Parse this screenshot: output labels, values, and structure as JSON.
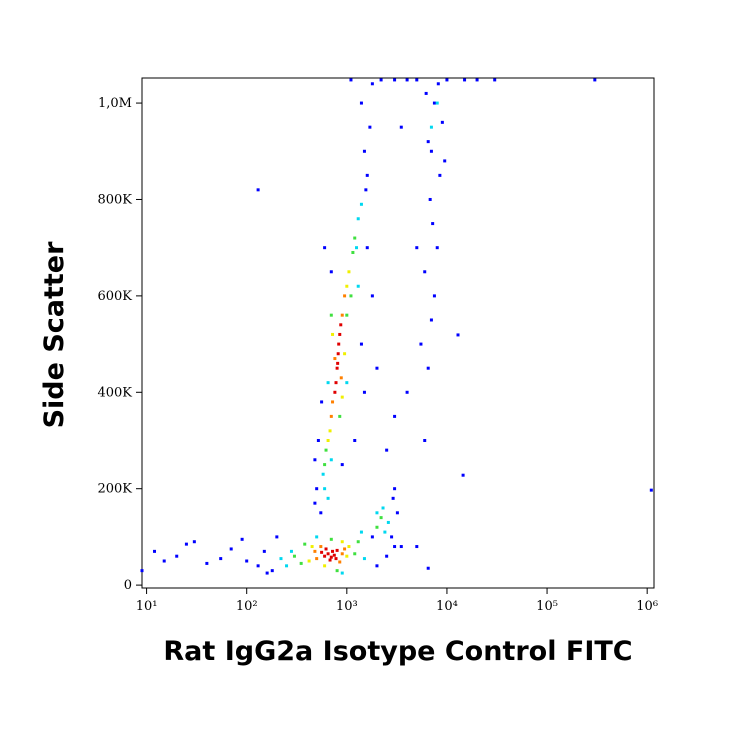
{
  "chart_data": {
    "type": "scatter",
    "x_label": "Rat IgG2a Isotype Control  FITC",
    "y_label": "Side Scatter",
    "xscale": "log",
    "xlim": [
      9,
      1170000
    ],
    "ylim": [
      -6000,
      1052000
    ],
    "xticks": [
      {
        "value": 10,
        "label": "10¹"
      },
      {
        "value": 100,
        "label": "10²"
      },
      {
        "value": 1000,
        "label": "10³"
      },
      {
        "value": 10000,
        "label": "10⁴"
      },
      {
        "value": 100000,
        "label": "10⁵"
      },
      {
        "value": 1000000,
        "label": "10⁶"
      }
    ],
    "yticks": [
      0,
      {
        "value": 200000,
        "label": "200K"
      },
      {
        "value": 400000,
        "label": "400K"
      },
      {
        "value": 600000,
        "label": "600K"
      },
      {
        "value": 800000,
        "label": "800K"
      },
      {
        "value": 1000000,
        "label": "1,0M"
      }
    ],
    "series": [
      {
        "color": "#0000ff",
        "x": [
          12,
          20,
          30,
          40,
          55,
          70,
          100,
          130,
          150,
          180,
          200,
          160,
          2500,
          3000,
          2000,
          1800,
          9,
          15,
          25,
          90,
          550,
          500,
          520,
          560,
          1600,
          1500,
          1700,
          1400,
          1800,
          1550,
          700,
          1400,
          1600,
          480,
          900,
          1200,
          1500,
          2000,
          3000,
          2500,
          1800,
          600,
          480,
          2800,
          3200,
          2900,
          3500,
          3000,
          6500,
          5000,
          6000,
          6500,
          7000,
          7500,
          6000,
          8000,
          7200,
          6800,
          8500,
          7000,
          6500,
          9000,
          7500,
          6200,
          8200,
          5500,
          9500,
          4000,
          5000,
          3500,
          2200,
          3000,
          5000,
          10000,
          15000,
          20000,
          30000,
          300000,
          1100,
          4000,
          130,
          14500,
          1100000,
          12900
        ],
        "values": [
          70000,
          60000,
          90000,
          45000,
          55000,
          75000,
          50000,
          40000,
          70000,
          30000,
          100000,
          25000,
          60000,
          80000,
          40000,
          100000,
          30000,
          50000,
          85000,
          95000,
          150000,
          200000,
          300000,
          380000,
          850000,
          900000,
          950000,
          1000000,
          1040000,
          820000,
          650000,
          500000,
          700000,
          260000,
          250000,
          300000,
          400000,
          450000,
          350000,
          280000,
          600000,
          700000,
          170000,
          100000,
          150000,
          180000,
          80000,
          200000,
          35000,
          80000,
          300000,
          450000,
          550000,
          600000,
          650000,
          700000,
          750000,
          800000,
          850000,
          900000,
          920000,
          960000,
          1000000,
          1020000,
          1040000,
          500000,
          880000,
          400000,
          700000,
          950000,
          1048000,
          1048000,
          1048000,
          1048000,
          1048000,
          1048000,
          1048000,
          1048000,
          1048000,
          1048000,
          820000,
          228000,
          197000,
          519000
        ]
      },
      {
        "color": "#00d8f0",
        "x": [
          250,
          1500,
          280,
          1400,
          500,
          900,
          220,
          600,
          650,
          1300,
          1400,
          580,
          1250,
          650,
          1000,
          700,
          1300,
          2400,
          2000,
          2300,
          2600,
          7000,
          8000
        ],
        "values": [
          40000,
          55000,
          70000,
          110000,
          100000,
          25000,
          55000,
          200000,
          180000,
          760000,
          790000,
          230000,
          700000,
          420000,
          420000,
          260000,
          620000,
          110000,
          150000,
          160000,
          130000,
          950000,
          1000000
        ]
      },
      {
        "color": "#40e040",
        "x": [
          350,
          1200,
          380,
          700,
          1300,
          800,
          300,
          620,
          1150,
          1200,
          600,
          1000,
          700,
          850,
          1100,
          2200,
          2000
        ],
        "values": [
          45000,
          65000,
          85000,
          95000,
          90000,
          30000,
          60000,
          280000,
          690000,
          720000,
          250000,
          560000,
          560000,
          350000,
          600000,
          140000,
          120000
        ]
      },
      {
        "color": "#f0f000",
        "x": [
          420,
          1000,
          450,
          1050,
          600,
          900,
          680,
          1000,
          1050,
          650,
          900,
          720,
          950
        ],
        "values": [
          50000,
          60000,
          80000,
          80000,
          40000,
          90000,
          320000,
          620000,
          650000,
          300000,
          390000,
          520000,
          480000
        ]
      },
      {
        "color": "#ff8000",
        "x": [
          500,
          900,
          850,
          550,
          950,
          480,
          720,
          900,
          950,
          700,
          880,
          760
        ],
        "values": [
          55000,
          65000,
          48000,
          80000,
          75000,
          70000,
          380000,
          560000,
          600000,
          350000,
          430000,
          470000
        ]
      },
      {
        "color": "#e00000",
        "x": [
          600,
          650,
          700,
          720,
          680,
          750,
          560,
          800,
          620,
          780,
          800,
          820,
          780,
          850,
          830,
          760,
          870,
          810
        ],
        "values": [
          60000,
          65000,
          58000,
          70000,
          52000,
          62000,
          68000,
          72000,
          75000,
          55000,
          450000,
          480000,
          420000,
          520000,
          500000,
          400000,
          540000,
          460000
        ]
      }
    ]
  }
}
